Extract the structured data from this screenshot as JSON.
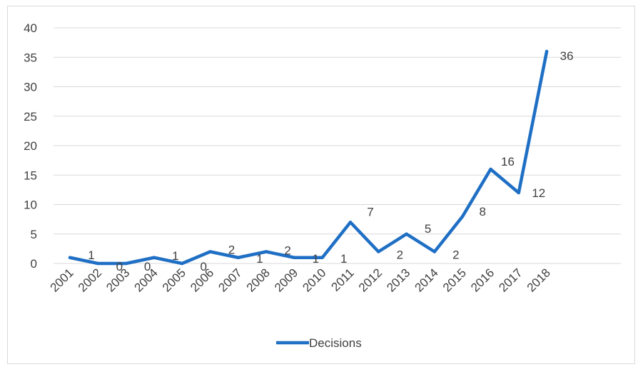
{
  "chart_data": {
    "type": "line",
    "categories": [
      "2001",
      "2002",
      "2003",
      "2004",
      "2005",
      "2006",
      "2007",
      "2008",
      "2009",
      "2010",
      "2011",
      "2012",
      "2013",
      "2014",
      "2015",
      "2016",
      "2017",
      "2018"
    ],
    "series": [
      {
        "name": "Decisions",
        "color": "#1f6fc5",
        "values": [
          1,
          0,
          0,
          1,
          0,
          2,
          1,
          2,
          1,
          1,
          7,
          2,
          5,
          2,
          8,
          16,
          12,
          36
        ]
      }
    ],
    "ylim": [
      0,
      40
    ],
    "yticks": [
      0,
      5,
      10,
      15,
      20,
      25,
      30,
      35,
      40
    ],
    "grid": true,
    "legend_position": "bottom",
    "data_labels": true
  }
}
